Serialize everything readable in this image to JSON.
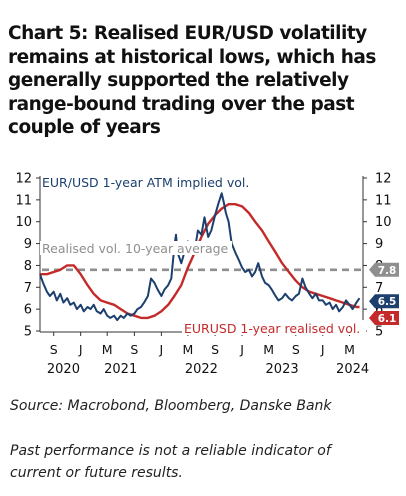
{
  "title": "Chart 5: Realised EUR/USD volatility remains at historical lows, which has generally supported the relatively range-bound trading over the past couple of years",
  "source": "Source: Macrobond, Bloomberg, Danske Bank",
  "disclaimer": "Past performance is not a reliable indicator of current or future results.",
  "colors": {
    "implied": "#1c3f6e",
    "realised": "#c42a2a",
    "average": "#8f8f8f",
    "text": "#111111"
  },
  "chart_data": {
    "type": "line",
    "ylim": [
      5,
      12
    ],
    "xlim": [
      "2020-07-01",
      "2024-07-01"
    ],
    "y_ticks": [
      5,
      6,
      7,
      8,
      9,
      10,
      11,
      12
    ],
    "x_month_ticks": [
      {
        "date": "2020-09-01",
        "label": "S"
      },
      {
        "date": "2021-01-01",
        "label": "J"
      },
      {
        "date": "2021-05-01",
        "label": "M"
      },
      {
        "date": "2021-09-01",
        "label": "S"
      },
      {
        "date": "2022-01-01",
        "label": "J"
      },
      {
        "date": "2022-05-01",
        "label": "M"
      },
      {
        "date": "2022-09-01",
        "label": "S"
      },
      {
        "date": "2023-01-01",
        "label": "J"
      },
      {
        "date": "2023-05-01",
        "label": "M"
      },
      {
        "date": "2023-09-01",
        "label": "S"
      },
      {
        "date": "2024-01-01",
        "label": "J"
      },
      {
        "date": "2024-05-01",
        "label": "M"
      }
    ],
    "x_year_labels": [
      {
        "date": "2020-10-15",
        "label": "2020"
      },
      {
        "date": "2021-07-01",
        "label": "2021"
      },
      {
        "date": "2022-07-01",
        "label": "2022"
      },
      {
        "date": "2023-07-01",
        "label": "2023"
      },
      {
        "date": "2024-05-15",
        "label": "2024"
      }
    ],
    "series": [
      {
        "name": "EUR/USD 1-year ATM implied vol.",
        "points": [
          [
            "2020-07-01",
            7.6
          ],
          [
            "2020-07-15",
            7.2
          ],
          [
            "2020-08-01",
            6.8
          ],
          [
            "2020-08-15",
            6.6
          ],
          [
            "2020-09-01",
            6.8
          ],
          [
            "2020-09-15",
            6.4
          ],
          [
            "2020-10-01",
            6.7
          ],
          [
            "2020-10-15",
            6.3
          ],
          [
            "2020-11-01",
            6.5
          ],
          [
            "2020-11-15",
            6.2
          ],
          [
            "2020-12-01",
            6.3
          ],
          [
            "2020-12-15",
            6.0
          ],
          [
            "2021-01-01",
            6.2
          ],
          [
            "2021-01-15",
            5.9
          ],
          [
            "2021-02-01",
            6.1
          ],
          [
            "2021-02-15",
            6.0
          ],
          [
            "2021-03-01",
            6.2
          ],
          [
            "2021-03-15",
            5.9
          ],
          [
            "2021-04-01",
            5.8
          ],
          [
            "2021-04-15",
            6.0
          ],
          [
            "2021-05-01",
            5.7
          ],
          [
            "2021-05-15",
            5.6
          ],
          [
            "2021-06-01",
            5.7
          ],
          [
            "2021-06-15",
            5.5
          ],
          [
            "2021-07-01",
            5.7
          ],
          [
            "2021-07-15",
            5.6
          ],
          [
            "2021-08-01",
            5.8
          ],
          [
            "2021-08-15",
            5.7
          ],
          [
            "2021-09-01",
            5.8
          ],
          [
            "2021-09-15",
            6.0
          ],
          [
            "2021-10-01",
            6.1
          ],
          [
            "2021-10-15",
            6.3
          ],
          [
            "2021-11-01",
            6.6
          ],
          [
            "2021-11-15",
            7.4
          ],
          [
            "2021-12-01",
            7.2
          ],
          [
            "2021-12-15",
            6.9
          ],
          [
            "2022-01-01",
            6.6
          ],
          [
            "2022-01-15",
            6.9
          ],
          [
            "2022-02-01",
            7.1
          ],
          [
            "2022-02-15",
            7.4
          ],
          [
            "2022-03-01",
            8.9
          ],
          [
            "2022-03-08",
            9.4
          ],
          [
            "2022-03-15",
            8.6
          ],
          [
            "2022-04-01",
            8.1
          ],
          [
            "2022-04-15",
            8.6
          ],
          [
            "2022-05-01",
            9.1
          ],
          [
            "2022-05-15",
            9.0
          ],
          [
            "2022-06-01",
            8.7
          ],
          [
            "2022-06-15",
            9.6
          ],
          [
            "2022-07-01",
            9.4
          ],
          [
            "2022-07-15",
            10.2
          ],
          [
            "2022-08-01",
            9.3
          ],
          [
            "2022-08-15",
            9.6
          ],
          [
            "2022-09-01",
            10.3
          ],
          [
            "2022-09-15",
            10.8
          ],
          [
            "2022-10-01",
            11.3
          ],
          [
            "2022-10-10",
            10.9
          ],
          [
            "2022-10-20",
            10.4
          ],
          [
            "2022-11-01",
            10.0
          ],
          [
            "2022-11-15",
            9.0
          ],
          [
            "2022-12-01",
            8.6
          ],
          [
            "2022-12-15",
            8.3
          ],
          [
            "2023-01-01",
            7.9
          ],
          [
            "2023-01-15",
            7.7
          ],
          [
            "2023-02-01",
            7.8
          ],
          [
            "2023-02-15",
            7.5
          ],
          [
            "2023-03-01",
            7.7
          ],
          [
            "2023-03-15",
            8.1
          ],
          [
            "2023-04-01",
            7.5
          ],
          [
            "2023-04-15",
            7.2
          ],
          [
            "2023-05-01",
            7.1
          ],
          [
            "2023-05-15",
            6.9
          ],
          [
            "2023-06-01",
            6.6
          ],
          [
            "2023-06-15",
            6.4
          ],
          [
            "2023-07-01",
            6.5
          ],
          [
            "2023-07-15",
            6.7
          ],
          [
            "2023-08-01",
            6.5
          ],
          [
            "2023-08-15",
            6.4
          ],
          [
            "2023-09-01",
            6.6
          ],
          [
            "2023-09-15",
            6.7
          ],
          [
            "2023-10-01",
            7.4
          ],
          [
            "2023-10-15",
            7.0
          ],
          [
            "2023-11-01",
            6.7
          ],
          [
            "2023-11-15",
            6.5
          ],
          [
            "2023-12-01",
            6.7
          ],
          [
            "2023-12-15",
            6.4
          ],
          [
            "2024-01-01",
            6.4
          ],
          [
            "2024-01-15",
            6.2
          ],
          [
            "2024-02-01",
            6.3
          ],
          [
            "2024-02-15",
            6.0
          ],
          [
            "2024-03-01",
            6.2
          ],
          [
            "2024-03-15",
            5.9
          ],
          [
            "2024-04-01",
            6.1
          ],
          [
            "2024-04-15",
            6.4
          ],
          [
            "2024-05-01",
            6.2
          ],
          [
            "2024-05-15",
            6.0
          ],
          [
            "2024-06-01",
            6.3
          ],
          [
            "2024-06-15",
            6.5
          ]
        ]
      },
      {
        "name": "EURUSD 1-year realised vol.",
        "points": [
          [
            "2020-07-01",
            7.6
          ],
          [
            "2020-08-01",
            7.6
          ],
          [
            "2020-09-01",
            7.7
          ],
          [
            "2020-10-01",
            7.8
          ],
          [
            "2020-11-01",
            8.0
          ],
          [
            "2020-12-01",
            8.0
          ],
          [
            "2021-01-01",
            7.6
          ],
          [
            "2021-02-01",
            7.1
          ],
          [
            "2021-03-01",
            6.7
          ],
          [
            "2021-04-01",
            6.4
          ],
          [
            "2021-05-01",
            6.3
          ],
          [
            "2021-06-01",
            6.2
          ],
          [
            "2021-07-01",
            6.0
          ],
          [
            "2021-08-01",
            5.8
          ],
          [
            "2021-09-01",
            5.7
          ],
          [
            "2021-10-01",
            5.6
          ],
          [
            "2021-11-01",
            5.6
          ],
          [
            "2021-12-01",
            5.7
          ],
          [
            "2022-01-01",
            5.9
          ],
          [
            "2022-02-01",
            6.2
          ],
          [
            "2022-03-01",
            6.6
          ],
          [
            "2022-04-01",
            7.1
          ],
          [
            "2022-05-01",
            7.9
          ],
          [
            "2022-06-01",
            8.6
          ],
          [
            "2022-07-01",
            9.3
          ],
          [
            "2022-08-01",
            9.9
          ],
          [
            "2022-09-01",
            10.3
          ],
          [
            "2022-10-01",
            10.6
          ],
          [
            "2022-11-01",
            10.8
          ],
          [
            "2022-12-01",
            10.8
          ],
          [
            "2023-01-01",
            10.7
          ],
          [
            "2023-02-01",
            10.4
          ],
          [
            "2023-03-01",
            10.0
          ],
          [
            "2023-04-01",
            9.6
          ],
          [
            "2023-05-01",
            9.1
          ],
          [
            "2023-06-01",
            8.6
          ],
          [
            "2023-07-01",
            8.1
          ],
          [
            "2023-08-01",
            7.7
          ],
          [
            "2023-09-01",
            7.3
          ],
          [
            "2023-10-01",
            7.0
          ],
          [
            "2023-11-01",
            6.8
          ],
          [
            "2023-12-01",
            6.7
          ],
          [
            "2024-01-01",
            6.6
          ],
          [
            "2024-02-01",
            6.5
          ],
          [
            "2024-03-01",
            6.4
          ],
          [
            "2024-04-01",
            6.3
          ],
          [
            "2024-05-01",
            6.2
          ],
          [
            "2024-06-01",
            6.1
          ],
          [
            "2024-06-15",
            6.1
          ]
        ]
      },
      {
        "name": "Realised vol. 10-year average",
        "value": 7.8
      }
    ],
    "annotations": [
      {
        "text": "EUR/USD 1-year ATM implied vol.",
        "series": "implied"
      },
      {
        "text": "Realised vol. 10-year average",
        "series": "average"
      },
      {
        "text": "EURUSD 1-year realised vol.",
        "series": "realised"
      }
    ],
    "end_labels": [
      {
        "series": "average",
        "label": "7.8",
        "value": 7.8
      },
      {
        "series": "implied",
        "label": "6.5",
        "value": 6.5
      },
      {
        "series": "realised",
        "label": "6.1",
        "value": 6.1
      }
    ],
    "grid": false,
    "legend": "none (inline labels)"
  }
}
